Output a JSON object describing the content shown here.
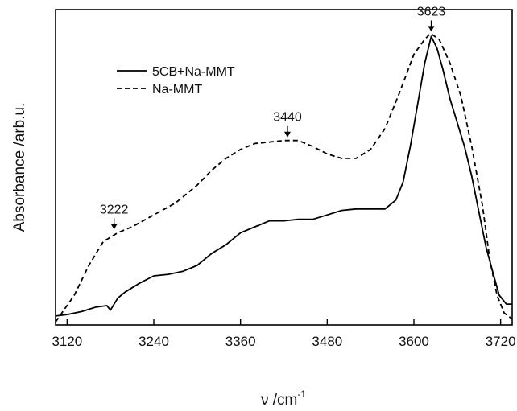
{
  "chart_data": {
    "type": "line",
    "xlabel": "ν /cm",
    "xlabel_sup": "-1",
    "ylabel": "Absorbance /arb.u.",
    "xlim": [
      3104,
      3736
    ],
    "ylim": [
      0,
      1.06
    ],
    "x_ticks": [
      3120,
      3240,
      3360,
      3480,
      3600,
      3720
    ],
    "y_ticks": [],
    "grid": false,
    "legend_position": "top-left",
    "series": [
      {
        "name": "5CB+Na-MMT",
        "style": "solid",
        "color": "#000000",
        "points": [
          [
            3104,
            0.03
          ],
          [
            3120,
            0.035
          ],
          [
            3140,
            0.045
          ],
          [
            3160,
            0.06
          ],
          [
            3175,
            0.065
          ],
          [
            3180,
            0.05
          ],
          [
            3190,
            0.09
          ],
          [
            3200,
            0.11
          ],
          [
            3220,
            0.14
          ],
          [
            3240,
            0.165
          ],
          [
            3260,
            0.17
          ],
          [
            3280,
            0.18
          ],
          [
            3300,
            0.2
          ],
          [
            3320,
            0.24
          ],
          [
            3340,
            0.27
          ],
          [
            3360,
            0.31
          ],
          [
            3380,
            0.33
          ],
          [
            3400,
            0.35
          ],
          [
            3420,
            0.35
          ],
          [
            3440,
            0.355
          ],
          [
            3460,
            0.355
          ],
          [
            3480,
            0.37
          ],
          [
            3500,
            0.385
          ],
          [
            3520,
            0.39
          ],
          [
            3540,
            0.39
          ],
          [
            3560,
            0.39
          ],
          [
            3575,
            0.42
          ],
          [
            3585,
            0.48
          ],
          [
            3595,
            0.6
          ],
          [
            3605,
            0.74
          ],
          [
            3615,
            0.88
          ],
          [
            3624,
            0.97
          ],
          [
            3632,
            0.93
          ],
          [
            3640,
            0.86
          ],
          [
            3650,
            0.76
          ],
          [
            3660,
            0.68
          ],
          [
            3670,
            0.6
          ],
          [
            3680,
            0.5
          ],
          [
            3690,
            0.38
          ],
          [
            3700,
            0.26
          ],
          [
            3710,
            0.17
          ],
          [
            3718,
            0.1
          ],
          [
            3728,
            0.07
          ],
          [
            3736,
            0.07
          ]
        ]
      },
      {
        "name": "Na-MMT",
        "style": "dashed",
        "color": "#000000",
        "points": [
          [
            3104,
            0.01
          ],
          [
            3130,
            0.1
          ],
          [
            3150,
            0.2
          ],
          [
            3170,
            0.28
          ],
          [
            3190,
            0.31
          ],
          [
            3210,
            0.33
          ],
          [
            3240,
            0.37
          ],
          [
            3270,
            0.41
          ],
          [
            3300,
            0.47
          ],
          [
            3320,
            0.52
          ],
          [
            3340,
            0.56
          ],
          [
            3360,
            0.59
          ],
          [
            3380,
            0.61
          ],
          [
            3400,
            0.615
          ],
          [
            3420,
            0.62
          ],
          [
            3440,
            0.62
          ],
          [
            3460,
            0.6
          ],
          [
            3480,
            0.575
          ],
          [
            3500,
            0.56
          ],
          [
            3520,
            0.56
          ],
          [
            3540,
            0.59
          ],
          [
            3560,
            0.66
          ],
          [
            3580,
            0.78
          ],
          [
            3600,
            0.91
          ],
          [
            3615,
            0.96
          ],
          [
            3623,
            0.98
          ],
          [
            3635,
            0.96
          ],
          [
            3650,
            0.88
          ],
          [
            3665,
            0.77
          ],
          [
            3680,
            0.6
          ],
          [
            3695,
            0.4
          ],
          [
            3705,
            0.22
          ],
          [
            3715,
            0.1
          ],
          [
            3725,
            0.04
          ],
          [
            3736,
            0.02
          ]
        ]
      }
    ],
    "annotations": [
      {
        "label": "3222",
        "x": 3185,
        "y": 0.31
      },
      {
        "label": "3440",
        "x": 3425,
        "y": 0.62
      },
      {
        "label": "3623",
        "x": 3624,
        "y": 0.975
      }
    ]
  }
}
